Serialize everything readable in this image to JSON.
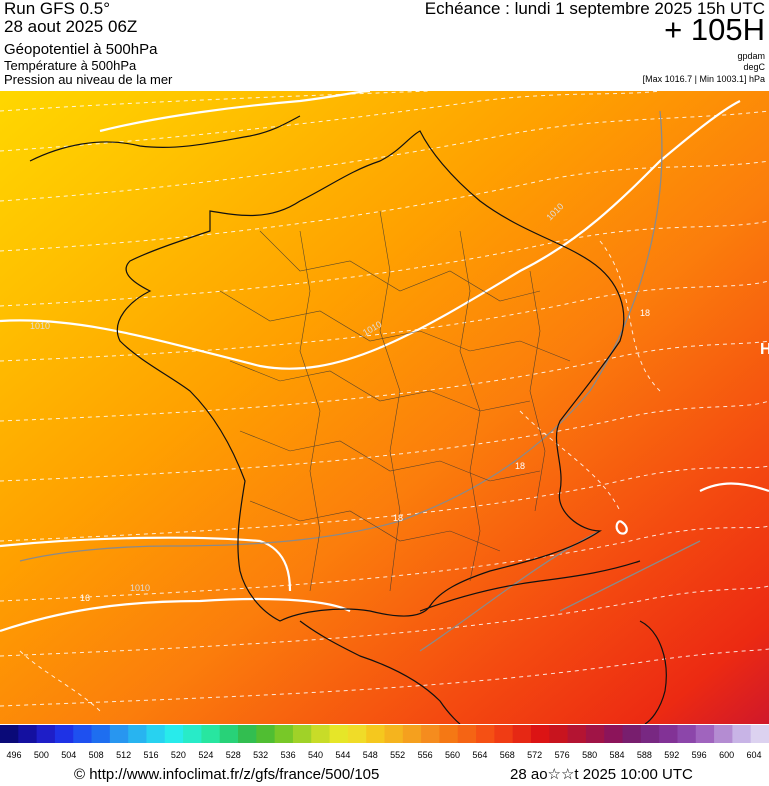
{
  "header": {
    "run": "Run GFS 0.5°",
    "date": "28 aout 2025 06Z",
    "title": "Géopotentiel à 500hPa",
    "subtitle1": "Température à 500hPa",
    "subtitle2": "Pression au niveau de la mer",
    "echeance": "Echéance : lundi 1 septembre 2025 15h UTC",
    "lead": "+ 105H",
    "unit_gpdam": "gpdam",
    "unit_degc": "degC",
    "range": "[Max 1016.7 | Min 1003.1] hPa"
  },
  "map": {
    "isobar_labels": [
      "1010",
      "1010",
      "1010",
      "1010"
    ],
    "isotherm_labels": [
      "18",
      "18",
      "18",
      "16"
    ],
    "edge_label": "H"
  },
  "scale": {
    "labels": [
      "496",
      "500",
      "504",
      "508",
      "512",
      "516",
      "520",
      "524",
      "528",
      "532",
      "536",
      "540",
      "544",
      "548",
      "552",
      "556",
      "560",
      "564",
      "568",
      "572",
      "576",
      "580",
      "584",
      "588",
      "592",
      "596",
      "600",
      "604"
    ],
    "colors": [
      "#0a0a78",
      "#1410a0",
      "#1e1ec8",
      "#1e32e6",
      "#1e50f0",
      "#1e6ef0",
      "#2896f0",
      "#28b4f0",
      "#28d2f0",
      "#28ebeb",
      "#28ebc8",
      "#28e6a0",
      "#28d278",
      "#32be50",
      "#50be32",
      "#78c828",
      "#a0d228",
      "#c8dc28",
      "#e6e628",
      "#f0dc28",
      "#f5c81e",
      "#f5b41e",
      "#f5a01e",
      "#f58c1e",
      "#f57814",
      "#f56414",
      "#f55014",
      "#f03c14",
      "#e62814",
      "#dc1414",
      "#c8141e",
      "#b41432",
      "#a01446",
      "#8c145a",
      "#781e6e",
      "#782882",
      "#823296",
      "#8c46aa",
      "#a064be",
      "#b48cd2",
      "#c8b4e6",
      "#dcd2f0"
    ]
  },
  "footer": {
    "source": "© http://www.infoclimat.fr/z/gfs/france/500/105",
    "generated": "28 ao☆☆t 2025 10:00 UTC"
  }
}
